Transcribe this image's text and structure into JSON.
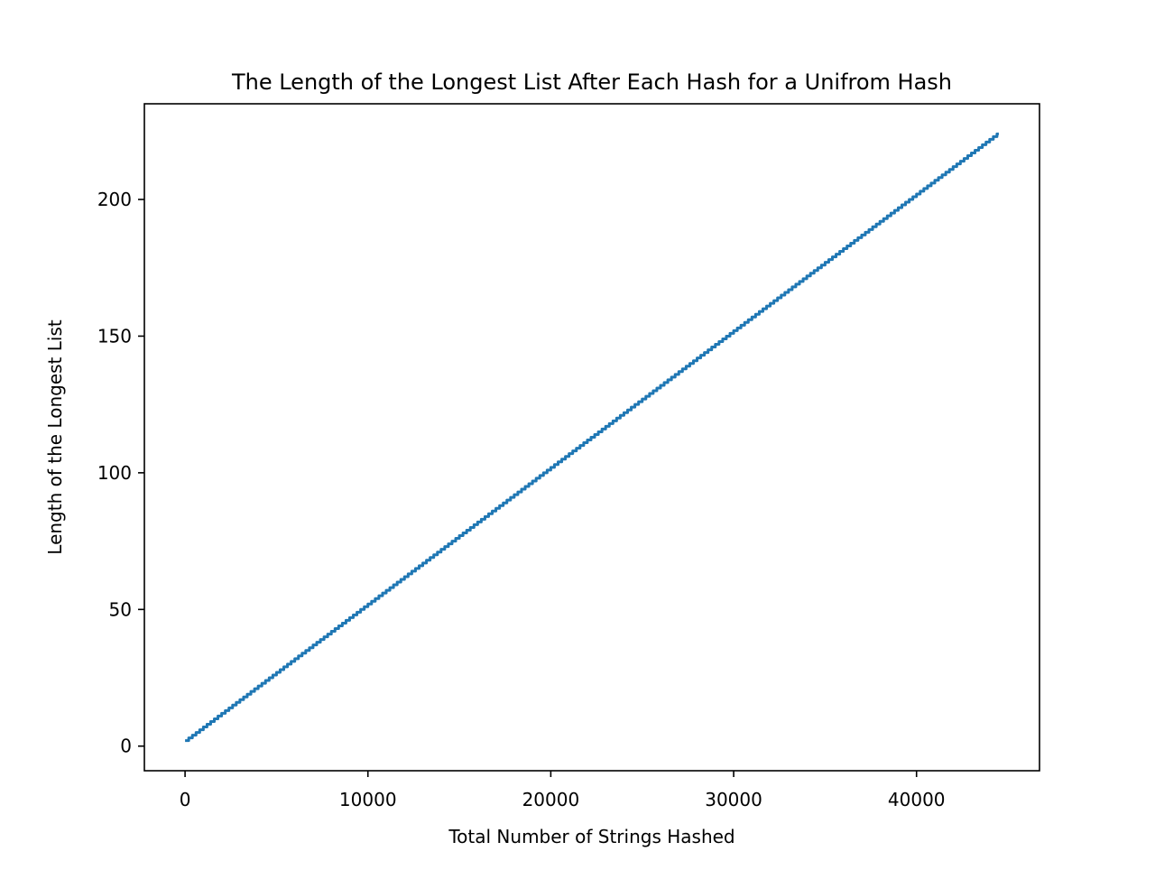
{
  "chart_data": {
    "type": "line",
    "title": "The Length of the Longest List After Each Hash for a Unifrom Hash",
    "xlabel": "Total Number of Strings Hashed",
    "ylabel": "Length of the Longest List",
    "xlim": [
      -2225,
      46725
    ],
    "ylim": [
      -9,
      235
    ],
    "xticks": [
      0,
      10000,
      20000,
      30000,
      40000
    ],
    "xtick_labels": [
      "0",
      "10000",
      "20000",
      "30000",
      "40000"
    ],
    "yticks": [
      0,
      50,
      100,
      150,
      200
    ],
    "ytick_labels": [
      "0",
      "50",
      "100",
      "150",
      "200"
    ],
    "grid": false,
    "series": [
      {
        "color": "#1f77b4",
        "start": {
          "x": 0,
          "y": 2
        },
        "end": {
          "x": 44500,
          "y": 224
        },
        "step_x": 200,
        "step_y": 1
      }
    ]
  }
}
